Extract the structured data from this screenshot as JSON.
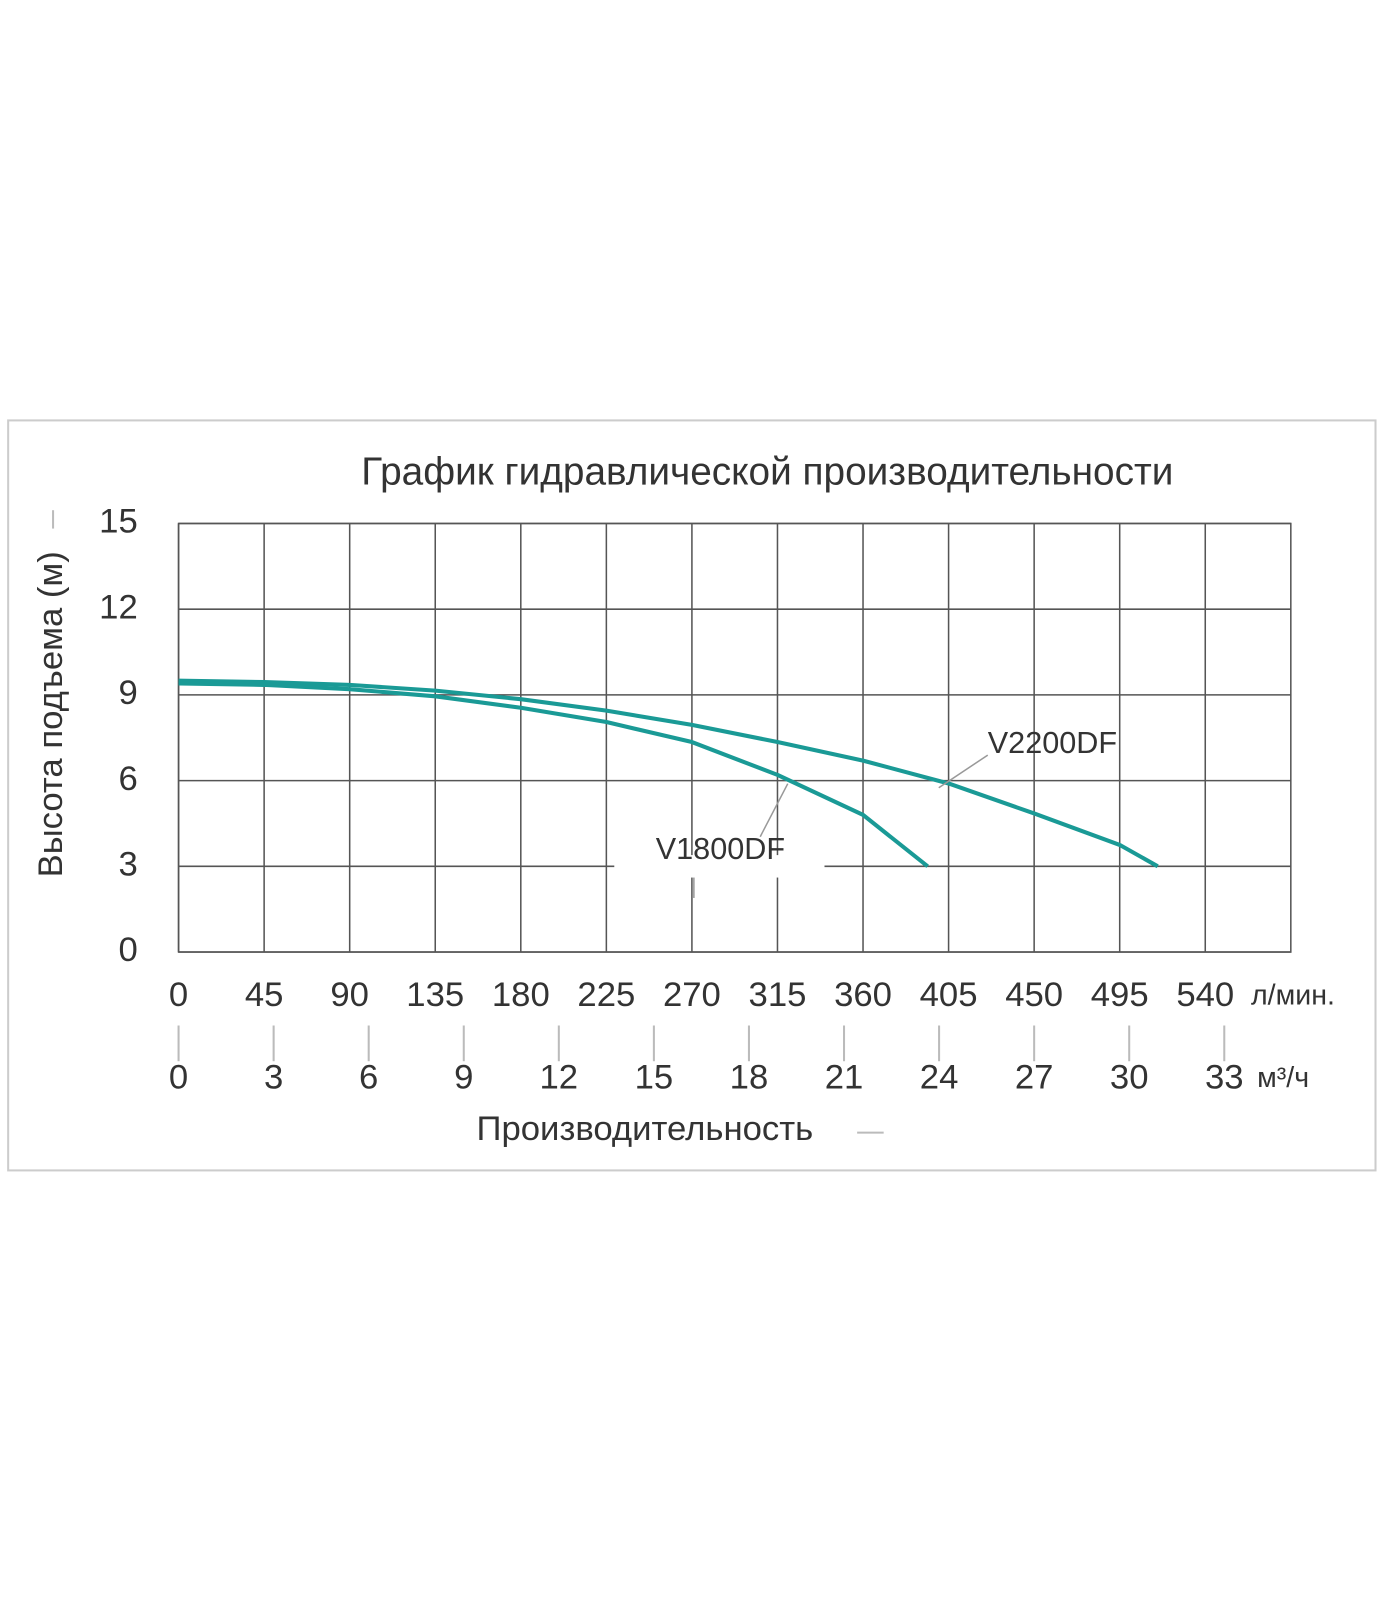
{
  "chart_data": {
    "type": "line",
    "title": "График гидравлической производительности",
    "y_label": "Высота подъема (м)",
    "x_label": "Производительность",
    "x_unit": "л/мин.",
    "x2_unit": "м³/ч",
    "xlim": [
      0,
      585
    ],
    "xticks": [
      0,
      45,
      90,
      135,
      180,
      225,
      270,
      315,
      360,
      405,
      450,
      495,
      540
    ],
    "x2lim": [
      0,
      35.1
    ],
    "x2ticks": [
      0,
      3,
      6,
      9,
      12,
      15,
      18,
      21,
      24,
      27,
      30,
      33
    ],
    "ylim": [
      0,
      15
    ],
    "yticks": [
      0,
      3,
      6,
      9,
      12,
      15
    ],
    "grid": true,
    "series": [
      {
        "name": "V2200DF",
        "color": "#1a9a96",
        "x": [
          0,
          45,
          90,
          135,
          180,
          225,
          270,
          315,
          360,
          405,
          450,
          495,
          515
        ],
        "values": [
          9.5,
          9.45,
          9.35,
          9.15,
          8.85,
          8.45,
          7.95,
          7.35,
          6.7,
          5.9,
          4.85,
          3.75,
          3.0
        ]
      },
      {
        "name": "V1800DF",
        "color": "#1a9a96",
        "x": [
          0,
          45,
          90,
          135,
          180,
          225,
          270,
          315,
          360,
          394
        ],
        "values": [
          9.4,
          9.35,
          9.2,
          8.95,
          8.55,
          8.05,
          7.35,
          6.2,
          4.8,
          3.0
        ]
      }
    ]
  }
}
